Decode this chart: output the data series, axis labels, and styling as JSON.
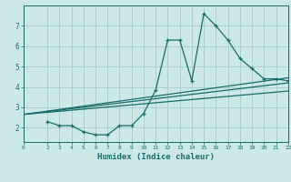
{
  "bg_color": "#cce8e8",
  "grid_color": "#aacccc",
  "line_color": "#1a6b6b",
  "xlabel": "Humidex (Indice chaleur)",
  "xlim": [
    0,
    22
  ],
  "ylim": [
    1.3,
    8.0
  ],
  "xticks": [
    0,
    2,
    3,
    4,
    5,
    6,
    7,
    8,
    9,
    10,
    11,
    12,
    13,
    14,
    15,
    16,
    17,
    18,
    19,
    20,
    21,
    22
  ],
  "yticks": [
    2,
    3,
    4,
    5,
    6,
    7
  ],
  "main_curve_x": [
    2,
    3,
    4,
    5,
    6,
    7,
    8,
    9,
    10,
    11,
    12,
    13,
    14,
    15,
    16,
    17,
    18,
    19,
    20,
    21,
    22
  ],
  "main_curve_y": [
    2.3,
    2.1,
    2.1,
    1.8,
    1.65,
    1.65,
    2.1,
    2.1,
    2.7,
    3.85,
    6.3,
    6.3,
    4.3,
    7.6,
    7.0,
    6.3,
    5.4,
    4.9,
    4.4,
    4.4,
    4.3
  ],
  "line1_x": [
    0,
    22
  ],
  "line1_y": [
    2.65,
    4.45
  ],
  "line2_x": [
    0,
    22
  ],
  "line2_y": [
    2.65,
    4.2
  ],
  "line3_x": [
    0,
    22
  ],
  "line3_y": [
    2.65,
    3.8
  ]
}
